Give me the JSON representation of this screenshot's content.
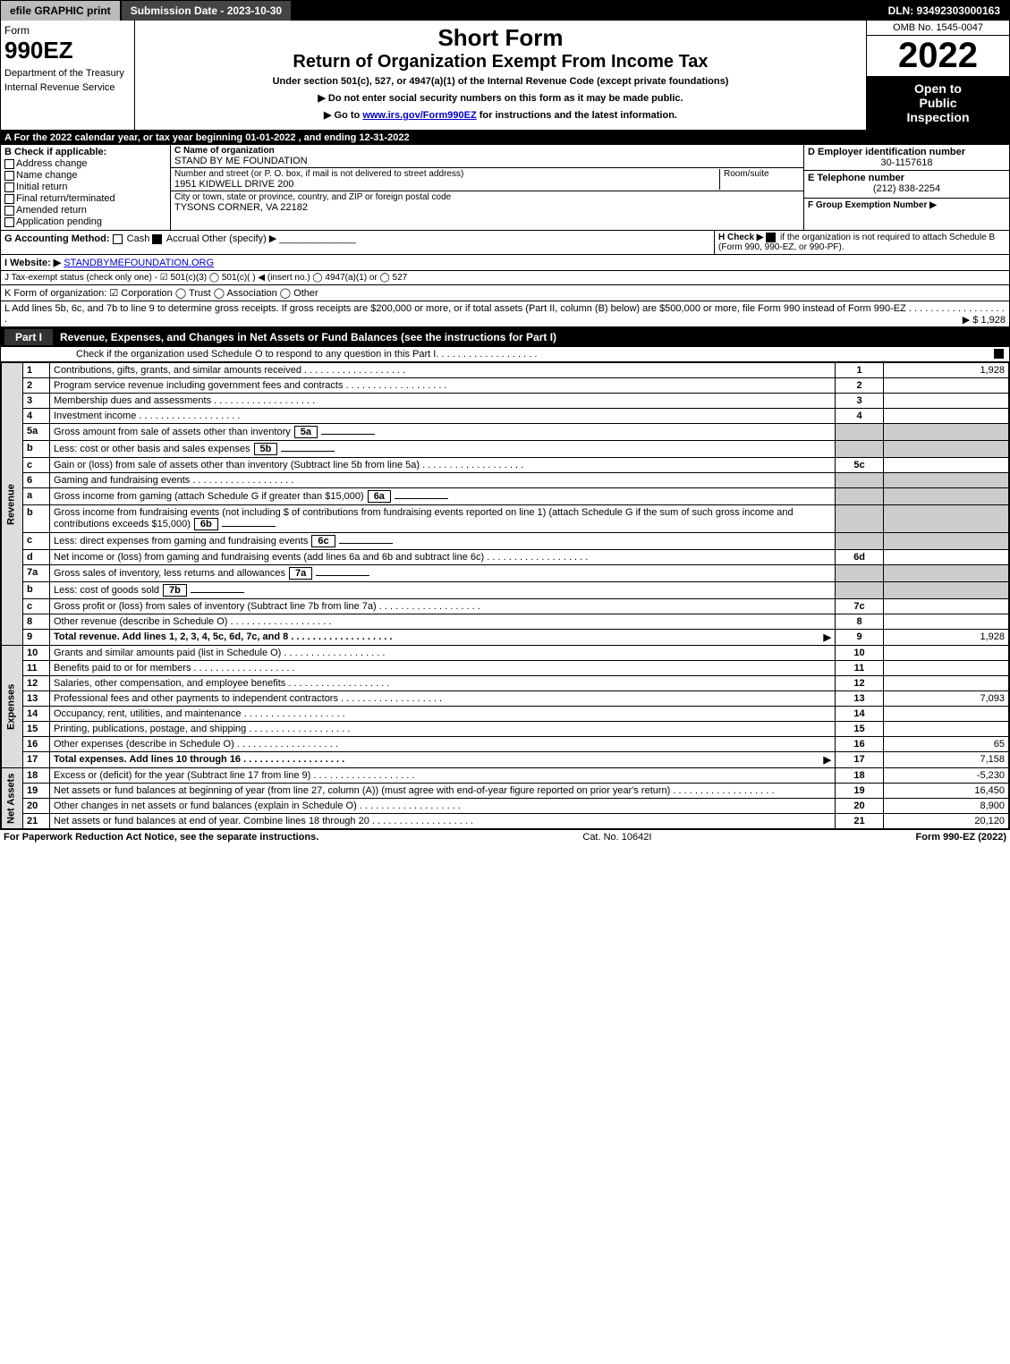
{
  "topbar": {
    "efile": "efile GRAPHIC print",
    "submission": "Submission Date - 2023-10-30",
    "dln": "DLN: 93492303000163"
  },
  "header": {
    "form_label": "Form",
    "form_number": "990EZ",
    "dept1": "Department of the Treasury",
    "dept2": "Internal Revenue Service",
    "title1": "Short Form",
    "title2": "Return of Organization Exempt From Income Tax",
    "subtitle": "Under section 501(c), 527, or 4947(a)(1) of the Internal Revenue Code (except private foundations)",
    "note1": "▶ Do not enter social security numbers on this form as it may be made public.",
    "note2_pre": "▶ Go to ",
    "note2_link": "www.irs.gov/Form990EZ",
    "note2_post": " for instructions and the latest information.",
    "omb": "OMB No. 1545-0047",
    "year": "2022",
    "inspect1": "Open to",
    "inspect2": "Public",
    "inspect3": "Inspection"
  },
  "row_a": "A  For the 2022 calendar year, or tax year beginning 01-01-2022  , and ending 12-31-2022",
  "section_b": {
    "title": "B  Check if applicable:",
    "opts": [
      "Address change",
      "Name change",
      "Initial return",
      "Final return/terminated",
      "Amended return",
      "Application pending"
    ],
    "c_name_label": "C Name of organization",
    "c_name": "STAND BY ME FOUNDATION",
    "c_addr_label": "Number and street (or P. O. box, if mail is not delivered to street address)",
    "c_addr": "1951 KIDWELL DRIVE 200",
    "c_room_label": "Room/suite",
    "c_city_label": "City or town, state or province, country, and ZIP or foreign postal code",
    "c_city": "TYSONS CORNER, VA  22182",
    "d_label": "D Employer identification number",
    "d_val": "30-1157618",
    "e_label": "E Telephone number",
    "e_val": "(212) 838-2254",
    "f_label": "F Group Exemption Number  ▶"
  },
  "line_g": {
    "label": "G Accounting Method:",
    "cash": "Cash",
    "accrual": "Accrual",
    "other": "Other (specify) ▶"
  },
  "line_h": {
    "label": "H  Check ▶",
    "text": "if the organization is not required to attach Schedule B (Form 990, 990-EZ, or 990-PF)."
  },
  "line_i": {
    "label": "I Website: ▶",
    "val": "STANDBYMEFOUNDATION.ORG"
  },
  "line_j": "J Tax-exempt status (check only one) - ☑ 501(c)(3)  ◯ 501(c)(  ) ◀ (insert no.)  ◯ 4947(a)(1) or  ◯ 527",
  "line_k": "K Form of organization:  ☑ Corporation  ◯ Trust  ◯ Association  ◯ Other",
  "line_l": {
    "text": "L Add lines 5b, 6c, and 7b to line 9 to determine gross receipts. If gross receipts are $200,000 or more, or if total assets (Part II, column (B) below) are $500,000 or more, file Form 990 instead of Form 990-EZ",
    "val": "▶ $ 1,928"
  },
  "part1": {
    "tab": "Part I",
    "title": "Revenue, Expenses, and Changes in Net Assets or Fund Balances (see the instructions for Part I)",
    "check_text": "Check if the organization used Schedule O to respond to any question in this Part I"
  },
  "revenue": {
    "label": "Revenue",
    "rows": [
      {
        "n": "1",
        "txt": "Contributions, gifts, grants, and similar amounts received",
        "num": "1",
        "val": "1,928"
      },
      {
        "n": "2",
        "txt": "Program service revenue including government fees and contracts",
        "num": "2",
        "val": ""
      },
      {
        "n": "3",
        "txt": "Membership dues and assessments",
        "num": "3",
        "val": ""
      },
      {
        "n": "4",
        "txt": "Investment income",
        "num": "4",
        "val": ""
      },
      {
        "n": "5a",
        "txt": "Gross amount from sale of assets other than inventory",
        "inner": "5a",
        "shaded": true
      },
      {
        "n": "b",
        "txt": "Less: cost or other basis and sales expenses",
        "inner": "5b",
        "shaded": true
      },
      {
        "n": "c",
        "txt": "Gain or (loss) from sale of assets other than inventory (Subtract line 5b from line 5a)",
        "num": "5c",
        "val": ""
      },
      {
        "n": "6",
        "txt": "Gaming and fundraising events",
        "shaded": true
      },
      {
        "n": "a",
        "txt": "Gross income from gaming (attach Schedule G if greater than $15,000)",
        "inner": "6a",
        "shaded": true
      },
      {
        "n": "b",
        "txt": "Gross income from fundraising events (not including $                    of contributions from fundraising events reported on line 1) (attach Schedule G if the sum of such gross income and contributions exceeds $15,000)",
        "inner": "6b",
        "shaded": true
      },
      {
        "n": "c",
        "txt": "Less: direct expenses from gaming and fundraising events",
        "inner": "6c",
        "shaded": true
      },
      {
        "n": "d",
        "txt": "Net income or (loss) from gaming and fundraising events (add lines 6a and 6b and subtract line 6c)",
        "num": "6d",
        "val": ""
      },
      {
        "n": "7a",
        "txt": "Gross sales of inventory, less returns and allowances",
        "inner": "7a",
        "shaded": true
      },
      {
        "n": "b",
        "txt": "Less: cost of goods sold",
        "inner": "7b",
        "shaded": true
      },
      {
        "n": "c",
        "txt": "Gross profit or (loss) from sales of inventory (Subtract line 7b from line 7a)",
        "num": "7c",
        "val": ""
      },
      {
        "n": "8",
        "txt": "Other revenue (describe in Schedule O)",
        "num": "8",
        "val": ""
      },
      {
        "n": "9",
        "txt": "Total revenue. Add lines 1, 2, 3, 4, 5c, 6d, 7c, and 8",
        "num": "9",
        "val": "1,928",
        "bold": true,
        "arrow": true
      }
    ]
  },
  "expenses": {
    "label": "Expenses",
    "rows": [
      {
        "n": "10",
        "txt": "Grants and similar amounts paid (list in Schedule O)",
        "num": "10",
        "val": ""
      },
      {
        "n": "11",
        "txt": "Benefits paid to or for members",
        "num": "11",
        "val": ""
      },
      {
        "n": "12",
        "txt": "Salaries, other compensation, and employee benefits",
        "num": "12",
        "val": ""
      },
      {
        "n": "13",
        "txt": "Professional fees and other payments to independent contractors",
        "num": "13",
        "val": "7,093"
      },
      {
        "n": "14",
        "txt": "Occupancy, rent, utilities, and maintenance",
        "num": "14",
        "val": ""
      },
      {
        "n": "15",
        "txt": "Printing, publications, postage, and shipping",
        "num": "15",
        "val": ""
      },
      {
        "n": "16",
        "txt": "Other expenses (describe in Schedule O)",
        "num": "16",
        "val": "65"
      },
      {
        "n": "17",
        "txt": "Total expenses. Add lines 10 through 16",
        "num": "17",
        "val": "7,158",
        "bold": true,
        "arrow": true
      }
    ]
  },
  "netassets": {
    "label": "Net Assets",
    "rows": [
      {
        "n": "18",
        "txt": "Excess or (deficit) for the year (Subtract line 17 from line 9)",
        "num": "18",
        "val": "-5,230"
      },
      {
        "n": "19",
        "txt": "Net assets or fund balances at beginning of year (from line 27, column (A)) (must agree with end-of-year figure reported on prior year's return)",
        "num": "19",
        "val": "16,450"
      },
      {
        "n": "20",
        "txt": "Other changes in net assets or fund balances (explain in Schedule O)",
        "num": "20",
        "val": "8,900"
      },
      {
        "n": "21",
        "txt": "Net assets or fund balances at end of year. Combine lines 18 through 20",
        "num": "21",
        "val": "20,120"
      }
    ]
  },
  "footer": {
    "left": "For Paperwork Reduction Act Notice, see the separate instructions.",
    "center": "Cat. No. 10642I",
    "right": "Form 990-EZ (2022)"
  },
  "colors": {
    "black": "#000000",
    "white": "#ffffff",
    "gray_btn": "#bbbbbb",
    "gray_shade": "#cccccc",
    "link": "#0000cc"
  }
}
